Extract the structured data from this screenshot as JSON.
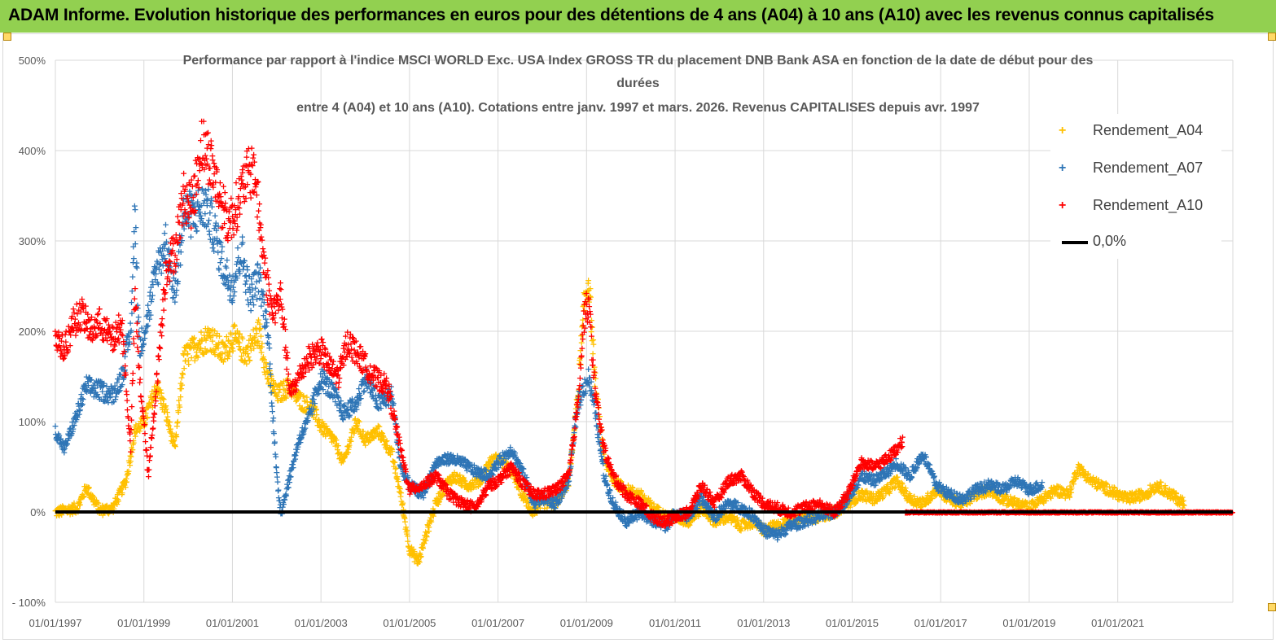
{
  "banner": {
    "title": "ADAM Informe. Evolution historique des performances en euros pour des détentions de 4 ans (A04) à 10 ans (A10) avec les revenus connus capitalisés"
  },
  "chart_data": {
    "type": "scatter",
    "title_lines": [
      "Performance par rapport à l'indice MSCI WORLD Exc. USA Index GROSS TR  du placement DNB Bank ASA en fonction de la date de début pour des",
      "durées",
      "entre 4 (A04) et 10 ans (A10). Cotations entre janv. 1997 et mars. 2026. Revenus CAPITALISES depuis avr. 1997"
    ],
    "xlabel": "",
    "ylabel": "",
    "x_range": [
      1997.0,
      2023.6
    ],
    "y_range": [
      -100,
      500
    ],
    "y_ticks": [
      -100,
      0,
      100,
      200,
      300,
      400,
      500
    ],
    "y_tick_labels": [
      "- 100%",
      "0%",
      "100%",
      "200%",
      "300%",
      "400%",
      "500%"
    ],
    "x_ticks": [
      1997,
      1999,
      2001,
      2003,
      2005,
      2007,
      2009,
      2011,
      2013,
      2015,
      2017,
      2019,
      2021
    ],
    "x_tick_labels": [
      "01/01/1997",
      "01/01/1999",
      "01/01/2001",
      "01/01/2003",
      "01/01/2005",
      "01/01/2007",
      "01/01/2009",
      "01/01/2011",
      "01/01/2013",
      "01/01/2015",
      "01/01/2017",
      "01/01/2019",
      "01/01/2021"
    ],
    "grid": true,
    "legend_position": "right",
    "series": [
      {
        "name": "Rendement_A04",
        "color": "#ffc000",
        "marker": "+",
        "anchors": [
          [
            1997.0,
            0
          ],
          [
            1997.5,
            5
          ],
          [
            1997.7,
            28
          ],
          [
            1998.0,
            2
          ],
          [
            1998.3,
            5
          ],
          [
            1998.6,
            35
          ],
          [
            1998.8,
            90
          ],
          [
            1999.0,
            100
          ],
          [
            1999.3,
            140
          ],
          [
            1999.5,
            110
          ],
          [
            1999.7,
            70
          ],
          [
            1999.9,
            170
          ],
          [
            2000.2,
            185
          ],
          [
            2000.5,
            195
          ],
          [
            2000.8,
            175
          ],
          [
            2001.0,
            195
          ],
          [
            2001.3,
            175
          ],
          [
            2001.6,
            200
          ],
          [
            2001.8,
            150
          ],
          [
            2002.0,
            130
          ],
          [
            2002.3,
            140
          ],
          [
            2002.5,
            125
          ],
          [
            2002.8,
            115
          ],
          [
            2003.0,
            95
          ],
          [
            2003.3,
            80
          ],
          [
            2003.5,
            55
          ],
          [
            2003.8,
            100
          ],
          [
            2004.0,
            80
          ],
          [
            2004.3,
            90
          ],
          [
            2004.6,
            65
          ],
          [
            2004.8,
            20
          ],
          [
            2005.0,
            -40
          ],
          [
            2005.2,
            -55
          ],
          [
            2005.4,
            -20
          ],
          [
            2005.6,
            10
          ],
          [
            2005.8,
            30
          ],
          [
            2006.0,
            40
          ],
          [
            2006.3,
            30
          ],
          [
            2006.6,
            35
          ],
          [
            2006.8,
            55
          ],
          [
            2007.0,
            60
          ],
          [
            2007.3,
            45
          ],
          [
            2007.6,
            15
          ],
          [
            2007.8,
            0
          ],
          [
            2008.0,
            10
          ],
          [
            2008.3,
            10
          ],
          [
            2008.6,
            35
          ],
          [
            2008.8,
            130
          ],
          [
            2008.95,
            230
          ],
          [
            2009.05,
            260
          ],
          [
            2009.2,
            140
          ],
          [
            2009.4,
            60
          ],
          [
            2009.6,
            35
          ],
          [
            2009.9,
            25
          ],
          [
            2010.2,
            20
          ],
          [
            2010.5,
            5
          ],
          [
            2010.8,
            -5
          ],
          [
            2011.0,
            -5
          ],
          [
            2011.3,
            -10
          ],
          [
            2011.6,
            5
          ],
          [
            2011.9,
            -10
          ],
          [
            2012.2,
            -5
          ],
          [
            2012.5,
            -15
          ],
          [
            2012.8,
            -10
          ],
          [
            2013.0,
            -20
          ],
          [
            2013.3,
            -15
          ],
          [
            2013.6,
            -10
          ],
          [
            2013.9,
            -5
          ],
          [
            2014.2,
            -5
          ],
          [
            2014.6,
            0
          ],
          [
            2014.9,
            10
          ],
          [
            2015.2,
            20
          ],
          [
            2015.5,
            15
          ],
          [
            2015.8,
            25
          ],
          [
            2016.0,
            35
          ],
          [
            2016.3,
            15
          ],
          [
            2016.6,
            10
          ],
          [
            2016.9,
            25
          ],
          [
            2017.2,
            15
          ],
          [
            2017.5,
            10
          ],
          [
            2017.8,
            20
          ],
          [
            2018.1,
            25
          ],
          [
            2018.4,
            15
          ],
          [
            2018.7,
            10
          ],
          [
            2019.0,
            5
          ],
          [
            2019.3,
            15
          ],
          [
            2019.6,
            25
          ],
          [
            2019.9,
            20
          ],
          [
            2020.1,
            50
          ],
          [
            2020.4,
            35
          ],
          [
            2020.8,
            25
          ],
          [
            2021.2,
            15
          ],
          [
            2021.6,
            20
          ],
          [
            2021.9,
            30
          ],
          [
            2022.2,
            20
          ],
          [
            2022.5,
            10
          ]
        ]
      },
      {
        "name": "Rendement_A07",
        "color": "#2e75b6",
        "marker": "+",
        "anchors": [
          [
            1997.0,
            90
          ],
          [
            1997.2,
            70
          ],
          [
            1997.5,
            110
          ],
          [
            1997.7,
            140
          ],
          [
            1998.0,
            135
          ],
          [
            1998.3,
            130
          ],
          [
            1998.5,
            150
          ],
          [
            1998.7,
            200
          ],
          [
            1998.8,
            330
          ],
          [
            1998.9,
            180
          ],
          [
            1999.1,
            220
          ],
          [
            1999.3,
            270
          ],
          [
            1999.5,
            300
          ],
          [
            1999.7,
            240
          ],
          [
            1999.9,
            330
          ],
          [
            2000.1,
            330
          ],
          [
            2000.4,
            340
          ],
          [
            2000.6,
            310
          ],
          [
            2000.8,
            270
          ],
          [
            2001.0,
            250
          ],
          [
            2001.2,
            290
          ],
          [
            2001.4,
            240
          ],
          [
            2001.6,
            260
          ],
          [
            2001.8,
            200
          ],
          [
            2002.0,
            40
          ],
          [
            2002.1,
            0
          ],
          [
            2002.3,
            40
          ],
          [
            2002.5,
            80
          ],
          [
            2002.7,
            100
          ],
          [
            2003.0,
            150
          ],
          [
            2003.3,
            130
          ],
          [
            2003.5,
            110
          ],
          [
            2003.8,
            120
          ],
          [
            2004.0,
            150
          ],
          [
            2004.3,
            120
          ],
          [
            2004.6,
            130
          ],
          [
            2004.8,
            50
          ],
          [
            2005.0,
            30
          ],
          [
            2005.3,
            20
          ],
          [
            2005.6,
            55
          ],
          [
            2005.9,
            60
          ],
          [
            2006.2,
            55
          ],
          [
            2006.5,
            45
          ],
          [
            2006.8,
            40
          ],
          [
            2007.0,
            55
          ],
          [
            2007.3,
            70
          ],
          [
            2007.6,
            40
          ],
          [
            2007.8,
            10
          ],
          [
            2008.0,
            15
          ],
          [
            2008.3,
            10
          ],
          [
            2008.6,
            35
          ],
          [
            2008.8,
            120
          ],
          [
            2008.95,
            140
          ],
          [
            2009.05,
            150
          ],
          [
            2009.2,
            110
          ],
          [
            2009.4,
            40
          ],
          [
            2009.6,
            10
          ],
          [
            2009.9,
            -10
          ],
          [
            2010.2,
            0
          ],
          [
            2010.5,
            -10
          ],
          [
            2010.8,
            -15
          ],
          [
            2011.0,
            0
          ],
          [
            2011.3,
            -5
          ],
          [
            2011.6,
            15
          ],
          [
            2011.9,
            -5
          ],
          [
            2012.2,
            10
          ],
          [
            2012.5,
            5
          ],
          [
            2012.8,
            -5
          ],
          [
            2013.0,
            -20
          ],
          [
            2013.3,
            -25
          ],
          [
            2013.6,
            -15
          ],
          [
            2013.9,
            -10
          ],
          [
            2014.2,
            -5
          ],
          [
            2014.6,
            0
          ],
          [
            2014.9,
            15
          ],
          [
            2015.2,
            40
          ],
          [
            2015.5,
            35
          ],
          [
            2015.8,
            45
          ],
          [
            2016.0,
            55
          ],
          [
            2016.3,
            40
          ],
          [
            2016.6,
            65
          ],
          [
            2016.9,
            30
          ],
          [
            2017.2,
            20
          ],
          [
            2017.5,
            15
          ],
          [
            2017.8,
            25
          ],
          [
            2018.1,
            30
          ],
          [
            2018.4,
            25
          ],
          [
            2018.7,
            35
          ],
          [
            2019.0,
            25
          ],
          [
            2019.3,
            30
          ]
        ]
      },
      {
        "name": "Rendement_A10",
        "color": "#ff0000",
        "marker": "+",
        "anchors": [
          [
            1997.0,
            195
          ],
          [
            1997.2,
            180
          ],
          [
            1997.4,
            210
          ],
          [
            1997.6,
            220
          ],
          [
            1997.8,
            200
          ],
          [
            1998.0,
            210
          ],
          [
            1998.3,
            190
          ],
          [
            1998.5,
            210
          ],
          [
            1998.7,
            70
          ],
          [
            1998.8,
            240
          ],
          [
            1998.9,
            150
          ],
          [
            1999.0,
            100
          ],
          [
            1999.1,
            40
          ],
          [
            1999.3,
            150
          ],
          [
            1999.5,
            270
          ],
          [
            1999.7,
            290
          ],
          [
            1999.9,
            350
          ],
          [
            2000.1,
            340
          ],
          [
            2000.3,
            410
          ],
          [
            2000.5,
            390
          ],
          [
            2000.7,
            350
          ],
          [
            2000.9,
            320
          ],
          [
            2001.1,
            340
          ],
          [
            2001.3,
            370
          ],
          [
            2001.5,
            380
          ],
          [
            2001.7,
            280
          ],
          [
            2001.9,
            220
          ],
          [
            2002.1,
            240
          ],
          [
            2002.3,
            130
          ],
          [
            2002.5,
            150
          ],
          [
            2002.7,
            170
          ],
          [
            2003.0,
            180
          ],
          [
            2003.2,
            160
          ],
          [
            2003.4,
            150
          ],
          [
            2003.6,
            190
          ],
          [
            2003.9,
            170
          ],
          [
            2004.2,
            150
          ],
          [
            2004.5,
            140
          ],
          [
            2004.8,
            70
          ],
          [
            2005.0,
            25
          ],
          [
            2005.3,
            30
          ],
          [
            2005.6,
            40
          ],
          [
            2005.9,
            20
          ],
          [
            2006.2,
            10
          ],
          [
            2006.5,
            5
          ],
          [
            2006.8,
            30
          ],
          [
            2007.0,
            35
          ],
          [
            2007.3,
            50
          ],
          [
            2007.6,
            30
          ],
          [
            2007.8,
            20
          ],
          [
            2008.0,
            20
          ],
          [
            2008.3,
            25
          ],
          [
            2008.6,
            40
          ],
          [
            2008.8,
            120
          ],
          [
            2008.95,
            220
          ],
          [
            2009.05,
            230
          ],
          [
            2009.2,
            130
          ],
          [
            2009.4,
            70
          ],
          [
            2009.6,
            40
          ],
          [
            2009.9,
            20
          ],
          [
            2010.2,
            10
          ],
          [
            2010.5,
            -5
          ],
          [
            2010.8,
            -10
          ],
          [
            2011.0,
            -5
          ],
          [
            2011.3,
            0
          ],
          [
            2011.6,
            30
          ],
          [
            2011.9,
            10
          ],
          [
            2012.2,
            35
          ],
          [
            2012.5,
            40
          ],
          [
            2012.8,
            20
          ],
          [
            2013.0,
            10
          ],
          [
            2013.3,
            5
          ],
          [
            2013.6,
            0
          ],
          [
            2013.9,
            5
          ],
          [
            2014.2,
            10
          ],
          [
            2014.6,
            0
          ],
          [
            2014.9,
            20
          ],
          [
            2015.2,
            55
          ],
          [
            2015.5,
            50
          ],
          [
            2015.8,
            60
          ],
          [
            2016.0,
            70
          ],
          [
            2016.15,
            80
          ]
        ]
      },
      {
        "name": "Rendement_A10",
        "color": "#ff0000",
        "marker": "+",
        "anchors": [
          [
            2016.2,
            0
          ],
          [
            2023.6,
            0
          ]
        ]
      }
    ],
    "reference_line": {
      "name": "0,0%",
      "value": 0,
      "color": "#000000"
    },
    "legend": [
      {
        "label": "Rendement_A04",
        "color": "#ffc000",
        "symbol": "+"
      },
      {
        "label": "Rendement_A07",
        "color": "#2e75b6",
        "symbol": "+"
      },
      {
        "label": "Rendement_A10",
        "color": "#ff0000",
        "symbol": "+"
      },
      {
        "label": "0,0%",
        "color": "#000000",
        "symbol": "line"
      }
    ]
  }
}
